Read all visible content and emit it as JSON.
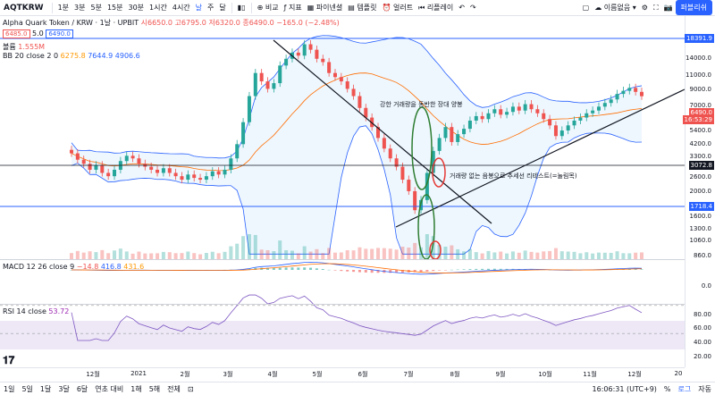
{
  "toolbar": {
    "symbol": "AQTKRW",
    "intervals": [
      "1분",
      "3분",
      "5분",
      "15분",
      "30분",
      "1시간",
      "4시간",
      "날",
      "주",
      "달"
    ],
    "active_interval": "날",
    "compare": "비교",
    "indicator": "지표",
    "financials": "파이넨셜",
    "template": "템플릿",
    "alert": "얼러트",
    "replay": "리플레이",
    "unnamed": "이름없음",
    "publish": "퍼블리쉬"
  },
  "legend": {
    "title": "Alpha Quark Token / KRW · 1날 · UPBIT",
    "open": "시6650.0",
    "high": "고6795.0",
    "low": "저6320.0",
    "close": "종6490.0",
    "change": "−165.0 (−2.48%)",
    "bid": "6485.0",
    "spread": "5.0",
    "ask": "6490.0",
    "volume_label": "볼륨",
    "volume_value": "1.555M",
    "bb_label": "BB 20 close 2 0",
    "bb_basis": "6275.8",
    "bb_upper": "7644.9",
    "bb_lower": "4906.6",
    "macd_label": "MACD 12 26 close 9",
    "macd_hist": "−14.8",
    "macd_line": "416.8",
    "macd_signal": "431.6",
    "rsi_label": "RSI 14 close",
    "rsi_value": "53.72"
  },
  "price_axis": {
    "ticks": [
      "14000.0",
      "11000.0",
      "9000.0",
      "7000.0",
      "5400.0",
      "4200.0",
      "3300.0",
      "2600.0",
      "2000.0",
      "1600.0",
      "1300.0",
      "1060.0",
      "860.0"
    ],
    "line_top": "18391.9",
    "current": "6490.0",
    "countdown": "16:53:29",
    "line_mid": "3072.8",
    "line_low": "1718.4"
  },
  "macd_axis": {
    "ticks": [
      "0.0"
    ]
  },
  "rsi_axis": {
    "ticks": [
      "80.00",
      "60.00",
      "40.00",
      "20.00"
    ]
  },
  "x_axis": {
    "ticks": [
      "12월",
      "2021",
      "2월",
      "3월",
      "4월",
      "5월",
      "6월",
      "7월",
      "8월",
      "9월",
      "10월",
      "11월",
      "12월",
      "20"
    ]
  },
  "annotations": {
    "strong_volume": "강한 거래량을 동반한 장대 양봉",
    "no_volume_retest": "거래량 없는 음봉으로 추세선 리테스트(=눌림목)"
  },
  "bottom": {
    "ranges": [
      "1일",
      "5일",
      "1달",
      "3달",
      "6달",
      "연초 대비",
      "1해",
      "5해",
      "전체"
    ],
    "time": "16:06:31 (UTC+9)",
    "percent": "%",
    "log": "로그",
    "auto": "자동"
  },
  "colors": {
    "up": "#26a69a",
    "down": "#ef5350",
    "bb_band": "#2962ff",
    "bb_basis": "#ff6d00",
    "rsi": "#7e57c2",
    "accent": "#2962ff"
  },
  "chart_data": {
    "type": "candlestick",
    "closes": [
      2900,
      2650,
      2500,
      2300,
      2450,
      2200,
      2100,
      2300,
      2600,
      2800,
      2700,
      2500,
      2400,
      2300,
      2200,
      2350,
      2200,
      2100,
      2000,
      2150,
      2050,
      2000,
      2100,
      2250,
      2150,
      2300,
      2700,
      3300,
      4500,
      6500,
      9000,
      8000,
      7200,
      7800,
      10000,
      11000,
      12000,
      11500,
      13500,
      12500,
      11000,
      10500,
      9000,
      8500,
      8000,
      7200,
      6500,
      5500,
      4800,
      4200,
      3600,
      3100,
      2700,
      2400,
      2000,
      1700,
      1300,
      1500,
      2200,
      3000,
      3600,
      4200,
      3400,
      3800,
      4100,
      4600,
      4900,
      4700,
      5100,
      5400,
      5000,
      5200,
      5600,
      5300,
      5800,
      5400,
      5100,
      4700,
      4300,
      3700,
      4000,
      4300,
      4600,
      4800,
      5100,
      5300,
      5600,
      5900,
      6200,
      6700,
      7000,
      7300,
      6900,
      6490
    ],
    "macd_range": [
      -600,
      600
    ],
    "rsi_range": [
      0,
      100
    ],
    "rsi_bands": [
      30,
      70
    ]
  }
}
